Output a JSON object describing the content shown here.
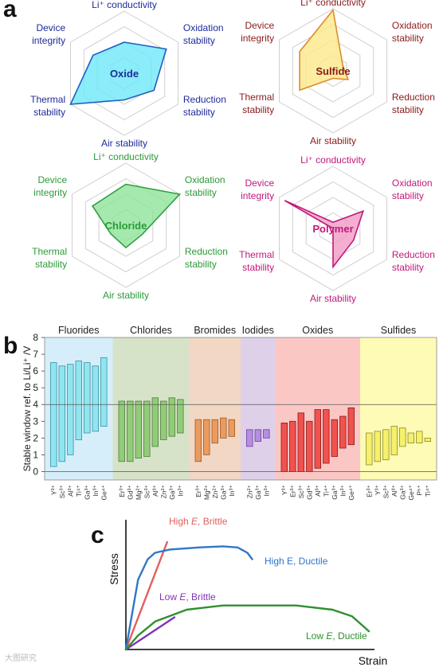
{
  "panel_labels": {
    "a": "a",
    "b": "b",
    "c": "c"
  },
  "watermark": "大图研究",
  "chart_data": [
    {
      "type": "radar",
      "panel": "a",
      "axes": [
        "Li⁺ conductivity",
        "Oxidation stability",
        "Reduction stability",
        "Air stability",
        "Thermal stability",
        "Device integrity"
      ],
      "charts": [
        {
          "name": "Oxide",
          "color": "#1f2a9c",
          "fill": "#6ee8f7",
          "stroke": "#1f5fbf",
          "values": [
            0.5,
            0.78,
            0.55,
            0.43,
            1.0,
            0.58
          ]
        },
        {
          "name": "Sulfide",
          "color": "#8b1a1a",
          "fill": "#fbe88a",
          "stroke": "#e08a2c",
          "values": [
            0.98,
            0.18,
            0.28,
            0.12,
            0.62,
            0.62
          ]
        },
        {
          "name": "Chloride",
          "color": "#2c9a3a",
          "fill": "#8fe39a",
          "stroke": "#2ea043",
          "values": [
            0.66,
            1.0,
            0.3,
            0.36,
            0.28,
            0.62
          ]
        },
        {
          "name": "Polymer",
          "color": "#c2187a",
          "fill": "#f19bc4",
          "stroke": "#c2187a",
          "values": [
            0.1,
            0.56,
            0.38,
            0.62,
            0.0,
            0.9
          ]
        }
      ]
    },
    {
      "type": "floating-bar",
      "panel": "b",
      "ylabel": "Stable window ref. to Li/Li⁺ /V",
      "ylim": [
        -0.5,
        8
      ],
      "yticks": [
        0,
        1,
        2,
        3,
        4,
        5,
        6,
        7,
        8
      ],
      "reference_lines": [
        0,
        4
      ],
      "groups": [
        {
          "name": "Fluorides",
          "bg": "#d6eefa",
          "bar": "#8fe6f0",
          "edge": "#3a8fa0",
          "bars": [
            {
              "label": "Y³⁺",
              "lo": 0.3,
              "hi": 6.5
            },
            {
              "label": "Sc³⁺",
              "lo": 0.6,
              "hi": 6.3
            },
            {
              "label": "Al³⁺",
              "lo": 1.0,
              "hi": 6.4
            },
            {
              "label": "Ti⁴⁺",
              "lo": 1.9,
              "hi": 6.6
            },
            {
              "label": "Ga³⁺",
              "lo": 2.3,
              "hi": 6.5
            },
            {
              "label": "In³⁺",
              "lo": 2.4,
              "hi": 6.3
            },
            {
              "label": "Ge⁴⁺",
              "lo": 2.7,
              "hi": 6.8
            }
          ]
        },
        {
          "name": "Chlorides",
          "bg": "#d7e3c8",
          "bar": "#92cc7a",
          "edge": "#4f7d3a",
          "bars": [
            {
              "label": "Er³⁺",
              "lo": 0.6,
              "hi": 4.2
            },
            {
              "label": "Gd³⁺",
              "lo": 0.6,
              "hi": 4.2
            },
            {
              "label": "Mg²⁺",
              "lo": 0.8,
              "hi": 4.2
            },
            {
              "label": "Sc³⁺",
              "lo": 0.9,
              "hi": 4.2
            },
            {
              "label": "Al³⁺",
              "lo": 1.5,
              "hi": 4.4
            },
            {
              "label": "Zn²⁺",
              "lo": 1.9,
              "hi": 4.2
            },
            {
              "label": "Ga³⁺",
              "lo": 2.1,
              "hi": 4.4
            },
            {
              "label": "In³⁺",
              "lo": 2.3,
              "hi": 4.3
            }
          ]
        },
        {
          "name": "Bromides",
          "bg": "#f1d7c4",
          "bar": "#ea9b60",
          "edge": "#9a5a2a",
          "bars": [
            {
              "label": "Er³⁺",
              "lo": 0.6,
              "hi": 3.1
            },
            {
              "label": "Mg²⁺",
              "lo": 1.0,
              "hi": 3.1
            },
            {
              "label": "Zn²⁺",
              "lo": 1.7,
              "hi": 3.1
            },
            {
              "label": "Ga³⁺",
              "lo": 2.0,
              "hi": 3.2
            },
            {
              "label": "In³⁺",
              "lo": 2.1,
              "hi": 3.1
            }
          ]
        },
        {
          "name": "Iodides",
          "bg": "#dfd0ea",
          "bar": "#b68ee0",
          "edge": "#6b3fa0",
          "bars": [
            {
              "label": "Zn²⁺",
              "lo": 1.5,
              "hi": 2.5
            },
            {
              "label": "Ga³⁺",
              "lo": 1.8,
              "hi": 2.5
            },
            {
              "label": "In³⁺",
              "lo": 2.0,
              "hi": 2.5
            }
          ]
        },
        {
          "name": "Oxides",
          "bg": "#fbc7c4",
          "bar": "#f0524f",
          "edge": "#8a1a1a",
          "bars": [
            {
              "label": "Y³⁺",
              "lo": 0.0,
              "hi": 2.9
            },
            {
              "label": "Er³⁺",
              "lo": 0.0,
              "hi": 3.0
            },
            {
              "label": "Sc³⁺",
              "lo": 0.0,
              "hi": 3.5
            },
            {
              "label": "Gd³⁺",
              "lo": 0.0,
              "hi": 3.0
            },
            {
              "label": "Al³⁺",
              "lo": 0.2,
              "hi": 3.7
            },
            {
              "label": "Ti⁴⁺",
              "lo": 0.5,
              "hi": 3.7
            },
            {
              "label": "Ga³⁺",
              "lo": 0.9,
              "hi": 3.1
            },
            {
              "label": "In³⁺",
              "lo": 1.4,
              "hi": 3.3
            },
            {
              "label": "Ge⁴⁺",
              "lo": 1.6,
              "hi": 3.8
            }
          ]
        },
        {
          "name": "Sulfides",
          "bg": "#fdfbb5",
          "bar": "#f6f06a",
          "edge": "#8a8a2a",
          "bars": [
            {
              "label": "Er³⁺",
              "lo": 0.4,
              "hi": 2.3
            },
            {
              "label": "Y³⁺",
              "lo": 0.6,
              "hi": 2.4
            },
            {
              "label": "Sc³⁺",
              "lo": 0.7,
              "hi": 2.5
            },
            {
              "label": "Al³⁺",
              "lo": 1.0,
              "hi": 2.7
            },
            {
              "label": "Ga³⁺",
              "lo": 1.5,
              "hi": 2.6
            },
            {
              "label": "Ge⁴⁺",
              "lo": 1.7,
              "hi": 2.3
            },
            {
              "label": "P⁵⁺",
              "lo": 1.7,
              "hi": 2.4
            },
            {
              "label": "Ti⁴⁺",
              "lo": 1.8,
              "hi": 2.0
            }
          ]
        }
      ]
    },
    {
      "type": "line",
      "panel": "c",
      "xlabel": "Strain",
      "ylabel": "Stress",
      "series": [
        {
          "name": "High E, Brittle",
          "name_parts": [
            "High ",
            "E",
            ", Brittle"
          ],
          "color": "#e0605e",
          "points": [
            [
              0,
              0
            ],
            [
              0.17,
              1.0
            ]
          ]
        },
        {
          "name": "High E, Ductile",
          "name_parts": [
            "High E, Ductile"
          ],
          "color": "#2f77c8",
          "points": [
            [
              0,
              0
            ],
            [
              0.05,
              0.65
            ],
            [
              0.09,
              0.84
            ],
            [
              0.12,
              0.9
            ],
            [
              0.18,
              0.93
            ],
            [
              0.3,
              0.95
            ],
            [
              0.4,
              0.96
            ],
            [
              0.46,
              0.95
            ],
            [
              0.5,
              0.9
            ],
            [
              0.52,
              0.84
            ]
          ]
        },
        {
          "name": "Low E, Brittle",
          "name_parts": [
            "Low ",
            "E",
            ", Brittle"
          ],
          "color": "#7f35b4",
          "points": [
            [
              0,
              0
            ],
            [
              0.2,
              0.3
            ]
          ]
        },
        {
          "name": "Low E, Ductile",
          "name_parts": [
            "Low ",
            "E",
            ", Ductile"
          ],
          "color": "#2f8f2f",
          "points": [
            [
              0,
              0
            ],
            [
              0.05,
              0.13
            ],
            [
              0.12,
              0.26
            ],
            [
              0.25,
              0.37
            ],
            [
              0.4,
              0.41
            ],
            [
              0.55,
              0.41
            ],
            [
              0.7,
              0.41
            ],
            [
              0.85,
              0.37
            ],
            [
              0.93,
              0.31
            ],
            [
              0.97,
              0.23
            ],
            [
              1.0,
              0.17
            ]
          ]
        }
      ]
    }
  ]
}
